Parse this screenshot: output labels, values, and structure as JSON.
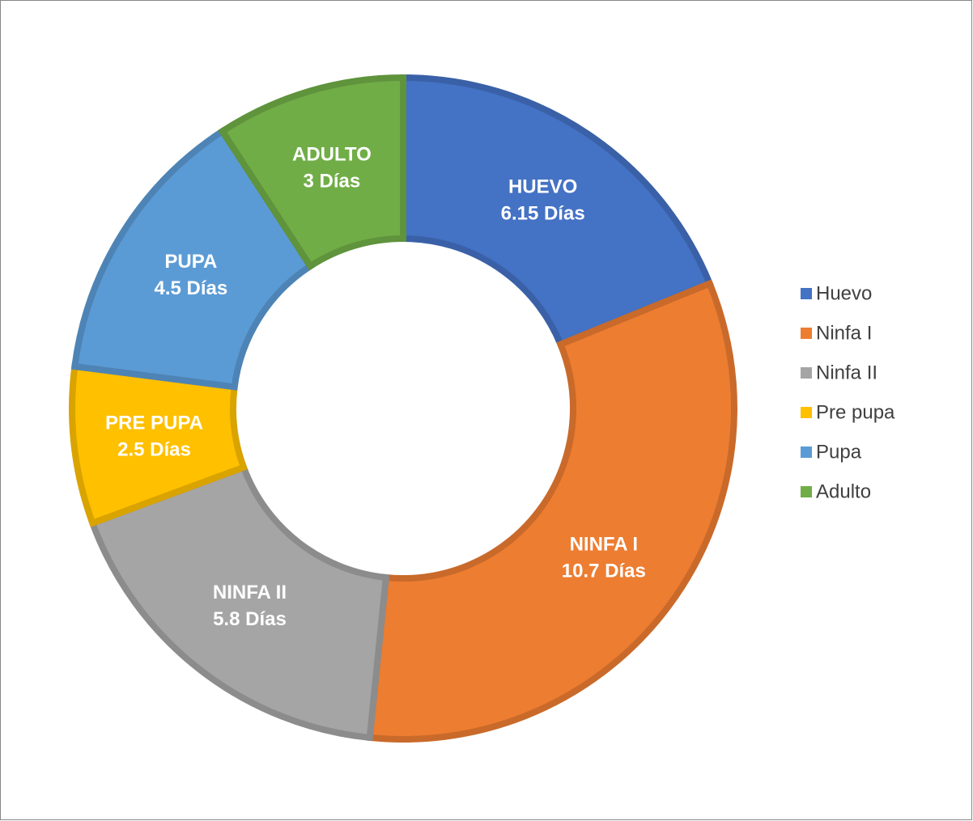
{
  "chart_data": {
    "type": "donut",
    "categories": [
      "Huevo",
      "Ninfa I",
      "Ninfa II",
      "Pre pupa",
      "Pupa",
      "Adulto"
    ],
    "values": [
      6.15,
      10.7,
      5.8,
      2.5,
      4.5,
      3
    ],
    "label_names": [
      "HUEVO",
      "NINFA I",
      "NINFA II",
      "PRE PUPA",
      "PUPA",
      "ADULTO"
    ],
    "value_labels": [
      "6.15 Días",
      "10.7 Días",
      "5.8 Días",
      "2.5 Días",
      "4.5 Días",
      "3 Días"
    ],
    "colors": [
      "#4472c4",
      "#ed7d31",
      "#a5a5a5",
      "#ffc000",
      "#5b9bd5",
      "#70ad47"
    ],
    "legend": "right"
  }
}
